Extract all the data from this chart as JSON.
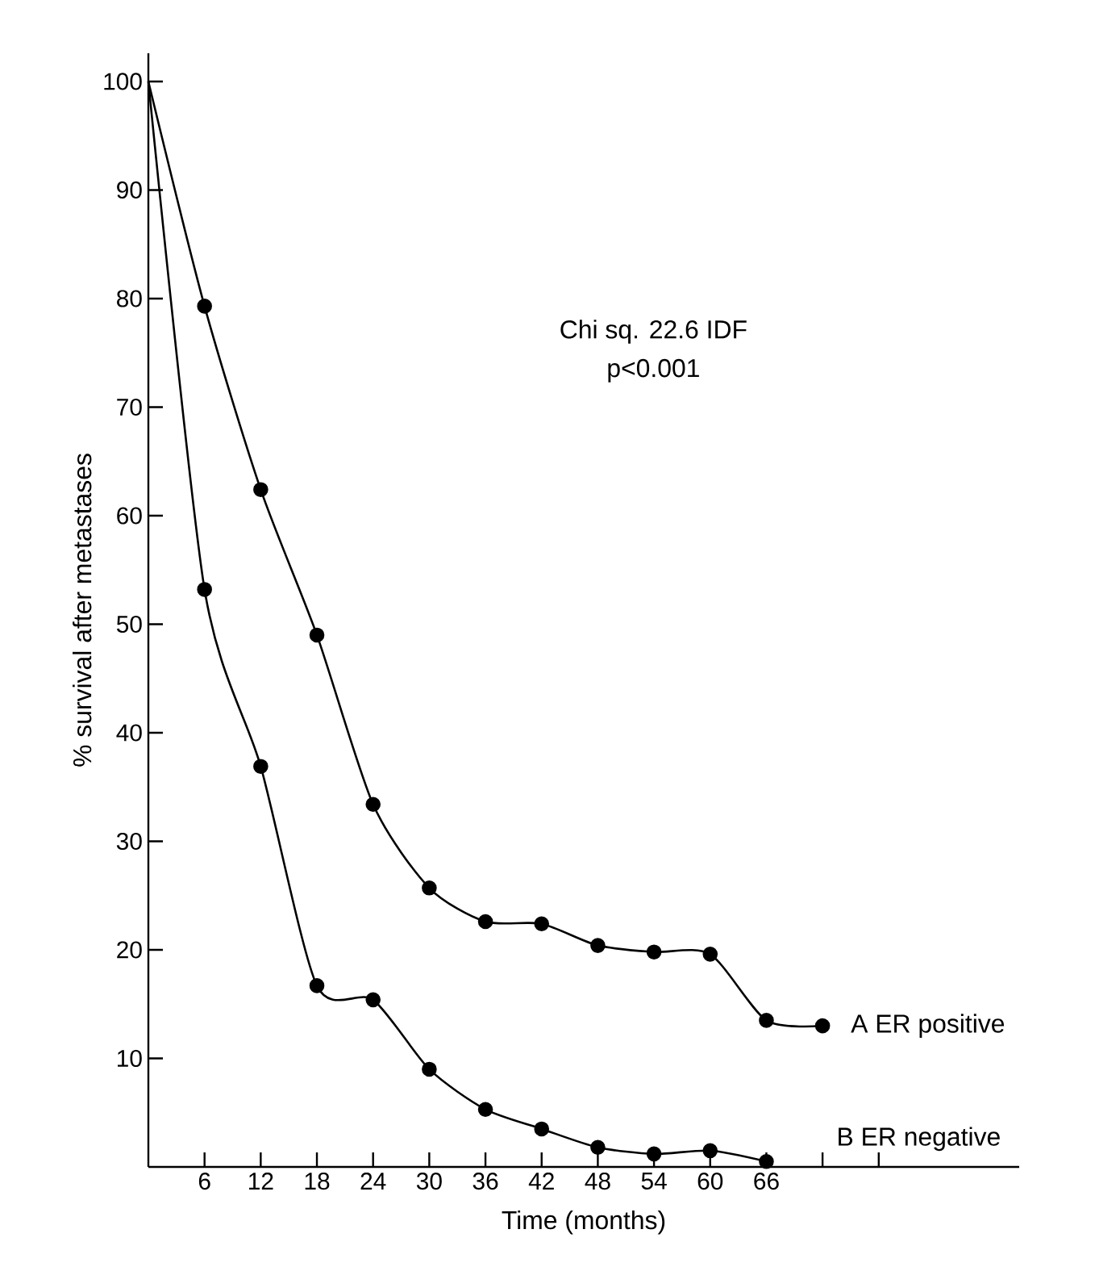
{
  "chart_data": {
    "type": "line",
    "xlabel": "Time (months)",
    "ylabel": "% survival after metastases",
    "annotations": [
      "Chi sq. 22.6 IDF",
      "p<0.001"
    ],
    "xlim": [
      0,
      93
    ],
    "ylim": [
      0,
      102.6
    ],
    "xticks": [
      6,
      12,
      18,
      24,
      30,
      36,
      42,
      48,
      54,
      60,
      66,
      {
        "value": 72,
        "label": null
      },
      {
        "value": 78,
        "label": null
      }
    ],
    "yticks": [
      10,
      20,
      30,
      40,
      50,
      60,
      70,
      80,
      90,
      100
    ],
    "marker": "circle",
    "line_style": "solid",
    "grid": false,
    "legend": false,
    "series": [
      {
        "name": "A ER positive",
        "color": "#000000",
        "x": [
          0,
          6,
          12,
          18,
          24,
          30,
          36,
          42,
          48,
          54,
          60,
          66,
          72
        ],
        "values": [
          100,
          79.3,
          62.4,
          49,
          33.4,
          25.7,
          22.6,
          22.4,
          20.4,
          19.8,
          19.6,
          13.5,
          13.0
        ]
      },
      {
        "name": "B ER negative",
        "color": "#000000",
        "x": [
          0,
          6,
          12,
          18,
          24,
          30,
          36,
          42,
          48,
          54,
          60,
          66
        ],
        "values": [
          100,
          53.2,
          36.9,
          16.7,
          15.4,
          9.0,
          5.3,
          3.5,
          1.8,
          1.2,
          1.5,
          0.5
        ]
      }
    ]
  }
}
